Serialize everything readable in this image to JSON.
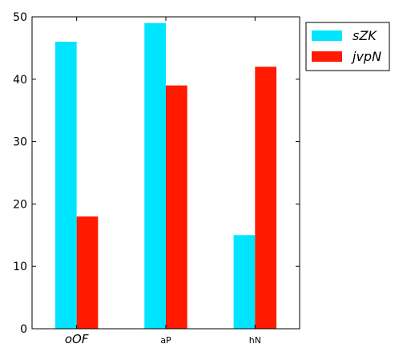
{
  "chart_data": {
    "type": "bar",
    "title": "",
    "xlabel": "",
    "ylabel": "",
    "categories": [
      "oOF",
      "aP",
      "hN"
    ],
    "series": [
      {
        "name": "sZK",
        "color": "#00e5ff",
        "values": [
          46,
          49,
          15
        ]
      },
      {
        "name": "jvpN",
        "color": "#ff1a00",
        "values": [
          18,
          39,
          42
        ]
      }
    ],
    "ylim": [
      0,
      50
    ],
    "yticks": [
      0,
      10,
      20,
      30,
      40,
      50
    ],
    "grid": false,
    "legend": "outside-top-right"
  }
}
